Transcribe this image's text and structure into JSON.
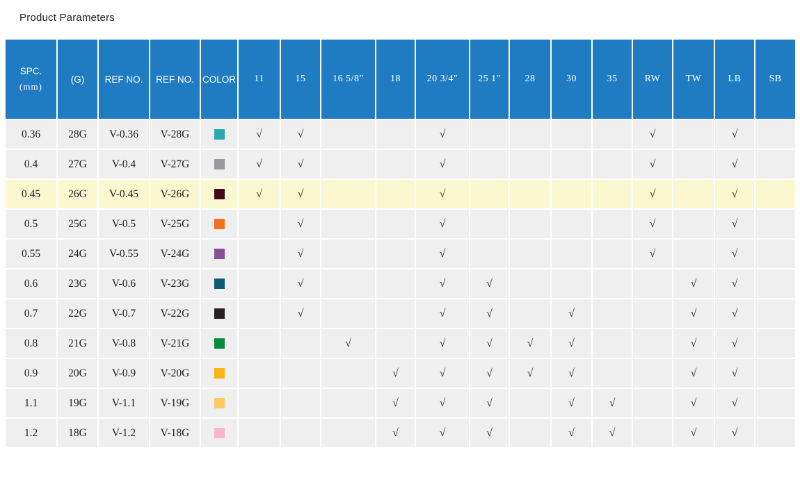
{
  "title": "Product Parameters",
  "colors": {
    "header_bg": "#1f7cc2",
    "header_text": "#ffffff",
    "row_bg": "#efeff0",
    "highlight_row_bg": "#fbf8d0",
    "check_color": "#2e2e2e"
  },
  "table": {
    "check_glyph": "√",
    "text_columns": [
      {
        "label": "SPC.",
        "sublabel": "(mm)"
      },
      {
        "label": "(G)",
        "sublabel": ""
      },
      {
        "label": "REF NO.",
        "sublabel": ""
      },
      {
        "label": "REF NO.",
        "sublabel": ""
      },
      {
        "label": "COLOR",
        "sublabel": ""
      }
    ],
    "check_columns": [
      "11",
      "15",
      "16 5/8″",
      "18",
      "20 3/4″",
      "25 1″",
      "28",
      "30",
      "35",
      "RW",
      "TW",
      "LB",
      "SB"
    ],
    "rows": [
      {
        "spc": "0.36",
        "g": "28G",
        "ref1": "V-0.36",
        "ref2": "V-28G",
        "swatch": "#29aab1",
        "highlight": false,
        "checks": [
          1,
          1,
          0,
          0,
          1,
          0,
          0,
          0,
          0,
          1,
          0,
          1,
          0
        ]
      },
      {
        "spc": "0.4",
        "g": "27G",
        "ref1": "V-0.4",
        "ref2": "V-27G",
        "swatch": "#97999e",
        "highlight": false,
        "checks": [
          1,
          1,
          0,
          0,
          1,
          0,
          0,
          0,
          0,
          1,
          0,
          1,
          0
        ]
      },
      {
        "spc": "0.45",
        "g": "26G",
        "ref1": "V-0.45",
        "ref2": "V-26G",
        "swatch": "#45091c",
        "highlight": true,
        "checks": [
          1,
          1,
          0,
          0,
          1,
          0,
          0,
          0,
          0,
          1,
          0,
          1,
          0
        ]
      },
      {
        "spc": "0.5",
        "g": "25G",
        "ref1": "V-0.5",
        "ref2": "V-25G",
        "swatch": "#f2701d",
        "highlight": false,
        "checks": [
          0,
          1,
          0,
          0,
          1,
          0,
          0,
          0,
          0,
          1,
          0,
          1,
          0
        ]
      },
      {
        "spc": "0.55",
        "g": "24G",
        "ref1": "V-0.55",
        "ref2": "V-24G",
        "swatch": "#8a4e96",
        "highlight": false,
        "checks": [
          0,
          1,
          0,
          0,
          1,
          0,
          0,
          0,
          0,
          1,
          0,
          1,
          0
        ]
      },
      {
        "spc": "0.6",
        "g": "23G",
        "ref1": "V-0.6",
        "ref2": "V-23G",
        "swatch": "#0b5a6e",
        "highlight": false,
        "checks": [
          0,
          1,
          0,
          0,
          1,
          1,
          0,
          0,
          0,
          0,
          1,
          1,
          0
        ]
      },
      {
        "spc": "0.7",
        "g": "22G",
        "ref1": "V-0.7",
        "ref2": "V-22G",
        "swatch": "#272124",
        "highlight": false,
        "checks": [
          0,
          1,
          0,
          0,
          1,
          1,
          0,
          1,
          0,
          0,
          1,
          1,
          0
        ]
      },
      {
        "spc": "0.8",
        "g": "21G",
        "ref1": "V-0.8",
        "ref2": "V-21G",
        "swatch": "#078b40",
        "highlight": false,
        "checks": [
          0,
          0,
          1,
          0,
          1,
          1,
          1,
          1,
          0,
          0,
          1,
          1,
          0
        ]
      },
      {
        "spc": "0.9",
        "g": "20G",
        "ref1": "V-0.9",
        "ref2": "V-20G",
        "swatch": "#fcb315",
        "highlight": false,
        "checks": [
          0,
          0,
          0,
          1,
          1,
          1,
          1,
          1,
          0,
          0,
          1,
          1,
          0
        ]
      },
      {
        "spc": "1.1",
        "g": "19G",
        "ref1": "V-1.1",
        "ref2": "V-19G",
        "swatch": "#fdc967",
        "highlight": false,
        "checks": [
          0,
          0,
          0,
          1,
          1,
          1,
          0,
          1,
          1,
          0,
          1,
          1,
          0
        ]
      },
      {
        "spc": "1.2",
        "g": "18G",
        "ref1": "V-1.2",
        "ref2": "V-18G",
        "swatch": "#f8b6c9",
        "highlight": false,
        "checks": [
          0,
          0,
          0,
          1,
          1,
          1,
          0,
          1,
          1,
          0,
          1,
          1,
          0
        ]
      }
    ]
  }
}
